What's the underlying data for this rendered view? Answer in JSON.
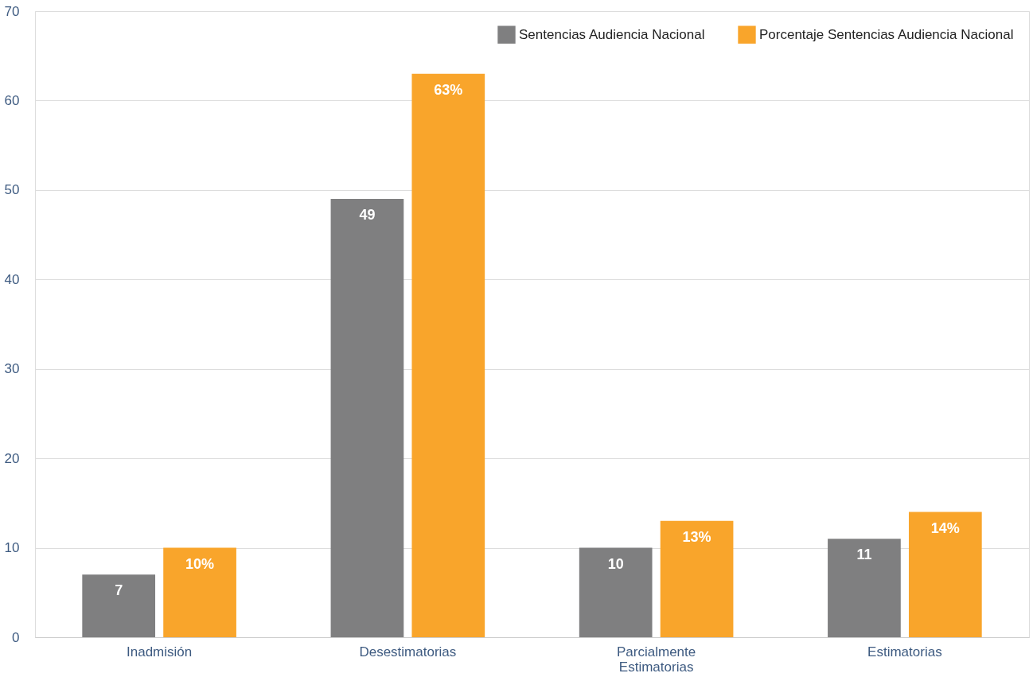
{
  "chart_data": {
    "type": "bar",
    "categories": [
      "Inadmisión",
      "Desestimatorias",
      "Parcialmente Estimatorias",
      "Estimatorias"
    ],
    "series": [
      {
        "name": "Sentencias Audiencia Nacional",
        "color": "#7f7f80",
        "values": [
          7,
          49,
          10,
          11
        ],
        "value_labels": [
          "7",
          "49",
          "10",
          "11"
        ]
      },
      {
        "name": "Porcentaje Sentencias Audiencia Nacional",
        "color": "#f9a52b",
        "values": [
          10,
          63,
          13,
          14
        ],
        "value_labels": [
          "10%",
          "63%",
          "13%",
          "14%"
        ]
      }
    ],
    "ylim": [
      0,
      70
    ],
    "yticks": [
      0,
      10,
      20,
      30,
      40,
      50,
      60,
      70
    ],
    "grid": "y",
    "legend": "top right"
  }
}
